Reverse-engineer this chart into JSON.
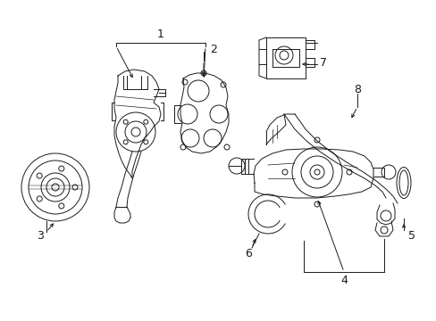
{
  "background_color": "#ffffff",
  "line_color": "#1a1a1a",
  "figsize": [
    4.89,
    3.6
  ],
  "dpi": 100,
  "border_color": "#cccccc",
  "label_fs": 9,
  "lw": 0.7
}
